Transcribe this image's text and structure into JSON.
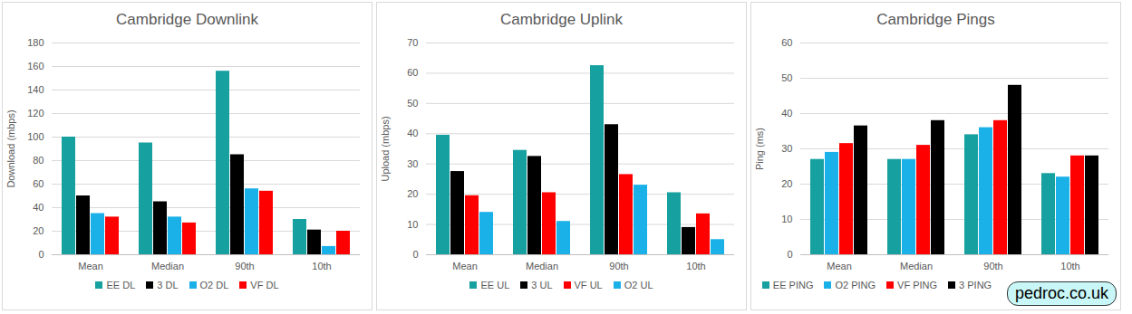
{
  "chart_data": [
    {
      "type": "bar",
      "title": "Cambridge Downlink",
      "y_label": "Download (mbps)",
      "categories": [
        "Mean",
        "Median",
        "90th",
        "10th"
      ],
      "series": [
        {
          "name": "EE DL",
          "color": "#16a0a0",
          "values": [
            100,
            95,
            156,
            30
          ]
        },
        {
          "name": "3 DL",
          "color": "#000000",
          "values": [
            50,
            45,
            85,
            21
          ]
        },
        {
          "name": "O2 DL",
          "color": "#1ab0e8",
          "values": [
            35,
            32,
            56,
            7
          ]
        },
        {
          "name": "VF DL",
          "color": "#ff0000",
          "values": [
            32,
            27,
            54,
            20
          ]
        }
      ],
      "ylim": [
        0,
        180
      ],
      "yticks": [
        0,
        20,
        40,
        60,
        80,
        100,
        120,
        140,
        160,
        180
      ],
      "grid": true,
      "legend": "bottom"
    },
    {
      "type": "bar",
      "title": "Cambridge Uplink",
      "y_label": "Upload (mbps)",
      "categories": [
        "Mean",
        "Median",
        "90th",
        "10th"
      ],
      "series": [
        {
          "name": "EE UL",
          "color": "#16a0a0",
          "values": [
            39.5,
            34.5,
            62.5,
            20.5
          ]
        },
        {
          "name": "3 UL",
          "color": "#000000",
          "values": [
            27.5,
            32.5,
            43,
            9
          ]
        },
        {
          "name": "VF UL",
          "color": "#ff0000",
          "values": [
            19.5,
            20.5,
            26.5,
            13.5
          ]
        },
        {
          "name": "O2 UL",
          "color": "#1ab0e8",
          "values": [
            14,
            11,
            23,
            5
          ]
        }
      ],
      "ylim": [
        0,
        70
      ],
      "yticks": [
        0,
        10,
        20,
        30,
        40,
        50,
        60,
        70
      ],
      "grid": true,
      "legend": "bottom"
    },
    {
      "type": "bar",
      "title": "Cambridge Pings",
      "y_label": "Ping (ms)",
      "categories": [
        "Mean",
        "Median",
        "90th",
        "10th"
      ],
      "series": [
        {
          "name": "EE PING",
          "color": "#16a0a0",
          "values": [
            27,
            27,
            34,
            23
          ]
        },
        {
          "name": "O2 PING",
          "color": "#1ab0e8",
          "values": [
            29,
            27,
            36,
            22
          ]
        },
        {
          "name": "VF PING",
          "color": "#ff0000",
          "values": [
            31.5,
            31,
            38,
            28
          ]
        },
        {
          "name": "3 PING",
          "color": "#000000",
          "values": [
            36.5,
            38,
            48,
            28
          ]
        }
      ],
      "ylim": [
        0,
        60
      ],
      "yticks": [
        0,
        10,
        20,
        30,
        40,
        50,
        60
      ],
      "grid": true,
      "legend": "bottom",
      "annotation": "pedroc.co.uk"
    }
  ]
}
